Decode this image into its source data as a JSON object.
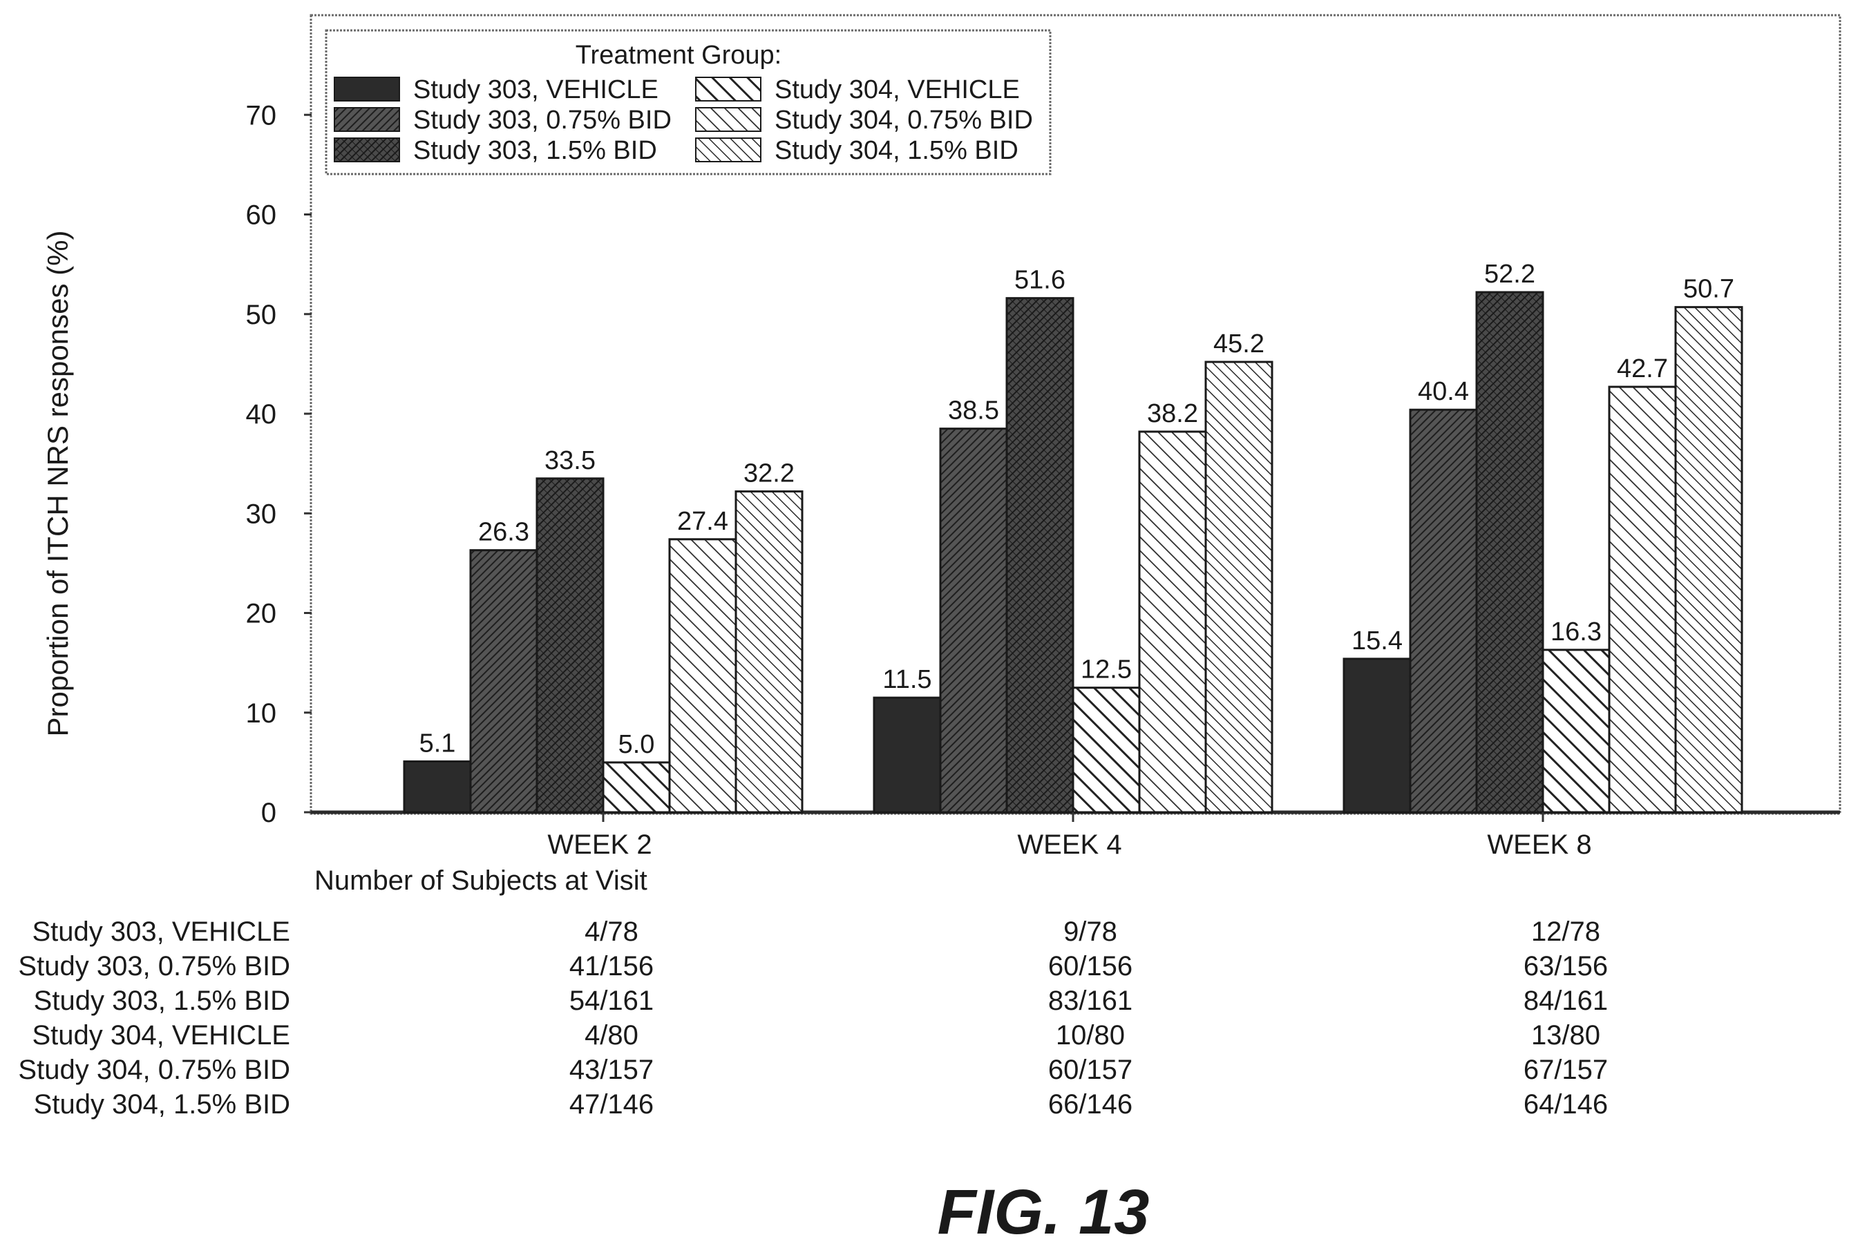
{
  "chart_data": {
    "type": "bar",
    "ylabel": "Proportion of ITCH NRS responses (%)",
    "ylim": [
      0,
      80
    ],
    "yticks": [
      0,
      10,
      20,
      30,
      40,
      50,
      60,
      70
    ],
    "grid": false,
    "legend_title": "Treatment Group:",
    "legend_position": "top-left",
    "categories": [
      "WEEK 2",
      "WEEK 4",
      "WEEK 8"
    ],
    "series": [
      {
        "name": "Study 303, VEHICLE",
        "values": [
          5.1,
          11.5,
          15.4
        ],
        "labels": [
          "5.1",
          "11.5",
          "15.4"
        ],
        "pattern": "solid-dark",
        "color": "#2b2b2b"
      },
      {
        "name": "Study 303, 0.75% BID",
        "values": [
          26.3,
          38.5,
          40.4
        ],
        "labels": [
          "26.3",
          "38.5",
          "40.4"
        ],
        "pattern": "hatch-dense",
        "color": "#3a3a3a"
      },
      {
        "name": "Study 303, 1.5% BID",
        "values": [
          33.5,
          51.6,
          52.2
        ],
        "labels": [
          "33.5",
          "51.6",
          "52.2"
        ],
        "pattern": "crosshatch-dense",
        "color": "#2f2f2f"
      },
      {
        "name": "Study 304, VEHICLE",
        "values": [
          5.0,
          12.5,
          16.3
        ],
        "labels": [
          "5.0",
          "12.5",
          "16.3"
        ],
        "pattern": "backslash-medium",
        "color": "#333333"
      },
      {
        "name": "Study 304, 0.75% BID",
        "values": [
          27.4,
          38.2,
          42.7
        ],
        "labels": [
          "27.4",
          "38.2",
          "42.7"
        ],
        "pattern": "backslash-light",
        "color": "#333333"
      },
      {
        "name": "Study 304, 1.5% BID",
        "values": [
          32.2,
          45.2,
          50.7
        ],
        "labels": [
          "32.2",
          "45.2",
          "50.7"
        ],
        "pattern": "backslash-fine",
        "color": "#333333"
      }
    ]
  },
  "subjects_table": {
    "title": "Number of Subjects at Visit",
    "rows": [
      {
        "label": "Study 303, VEHICLE",
        "values": [
          "4/78",
          "9/78",
          "12/78"
        ]
      },
      {
        "label": "Study 303, 0.75% BID",
        "values": [
          "41/156",
          "60/156",
          "63/156"
        ]
      },
      {
        "label": "Study 303, 1.5% BID",
        "values": [
          "54/161",
          "83/161",
          "84/161"
        ]
      },
      {
        "label": "Study 304, VEHICLE",
        "values": [
          "4/80",
          "10/80",
          "13/80"
        ]
      },
      {
        "label": "Study 304, 0.75% BID",
        "values": [
          "43/157",
          "60/157",
          "67/157"
        ]
      },
      {
        "label": "Study 304, 1.5% BID",
        "values": [
          "47/146",
          "66/146",
          "64/146"
        ]
      }
    ]
  },
  "figure_caption": "FIG. 13"
}
